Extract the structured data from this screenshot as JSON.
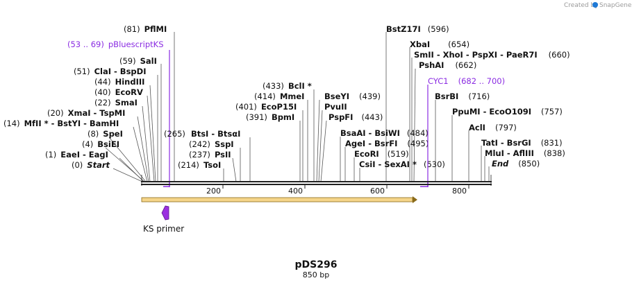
{
  "credit": "Created by",
  "brand": "SnapGene",
  "plasmid": {
    "name": "pDS296",
    "length": "850 bp"
  },
  "ticks": [
    "200",
    "400",
    "600",
    "800"
  ],
  "features": [
    {
      "label": "pBluescriptKS",
      "range": "(53 .. 69)"
    },
    {
      "label": "CYC1",
      "range": "(682 .. 700)"
    }
  ],
  "primer": {
    "label": "KS primer"
  },
  "sites_left": [
    {
      "pos": "(81)",
      "name": "PflMI"
    },
    {
      "pos": "(59)",
      "name": "SalI"
    },
    {
      "pos": "(51)",
      "name": "ClaI  -  BspDI"
    },
    {
      "pos": "(44)",
      "name": "HindIII"
    },
    {
      "pos": "(40)",
      "name": "EcoRV"
    },
    {
      "pos": "(22)",
      "name": "SmaI"
    },
    {
      "pos": "(20)",
      "name": "XmaI  -  TspMI"
    },
    {
      "pos": "(14)",
      "name": "MfII *  -  BstYI  -  BamHI"
    },
    {
      "pos": "(8)",
      "name": "SpeI"
    },
    {
      "pos": "(4)",
      "name": "BsiEI"
    },
    {
      "pos": "(1)",
      "name": "EaeI  -  EagI"
    },
    {
      "pos": "(0)",
      "name": "Start"
    }
  ],
  "sites_mid": [
    {
      "pos": "(265)",
      "name": "BtsI  -  BtsαI"
    },
    {
      "pos": "(242)",
      "name": "SspI"
    },
    {
      "pos": "(237)",
      "name": "PsII"
    },
    {
      "pos": "(214)",
      "name": "TsoI"
    },
    {
      "pos": "(433)",
      "name": "BclI *"
    },
    {
      "pos": "(414)",
      "name": "MmeI"
    },
    {
      "pos": "(401)",
      "name": "EcoP15I"
    },
    {
      "pos": "(391)",
      "name": "BpmI"
    },
    {
      "pos": "(439)",
      "name": "BseYI"
    },
    {
      "pos": "",
      "name": "PvuII"
    },
    {
      "pos": "(443)",
      "name": "PspFI"
    }
  ],
  "sites_right": [
    {
      "pos": "(596)",
      "name": "BstZ17I"
    },
    {
      "pos": "(654)",
      "name": "XbaI"
    },
    {
      "pos": "(660)",
      "name": "SmII  -  XhoI  -  PspXI  -  PaeR7I"
    },
    {
      "pos": "(662)",
      "name": "PshAI"
    },
    {
      "pos": "(716)",
      "name": "BsrBI"
    },
    {
      "pos": "(757)",
      "name": "PpuMI  -  EcoO109I"
    },
    {
      "pos": "(797)",
      "name": "AclI"
    },
    {
      "pos": "(484)",
      "name": "BsaAI  -  BsiWI"
    },
    {
      "pos": "(495)",
      "name": "AgeI  -  BsrFI"
    },
    {
      "pos": "(519)",
      "name": "EcoRI"
    },
    {
      "pos": "(530)",
      "name": "CsiI  -  SexAI *"
    },
    {
      "pos": "(831)",
      "name": "TatI  -  BsrGI"
    },
    {
      "pos": "(838)",
      "name": "MluI  -  AflIII"
    },
    {
      "pos": "(850)",
      "name": "End"
    }
  ]
}
